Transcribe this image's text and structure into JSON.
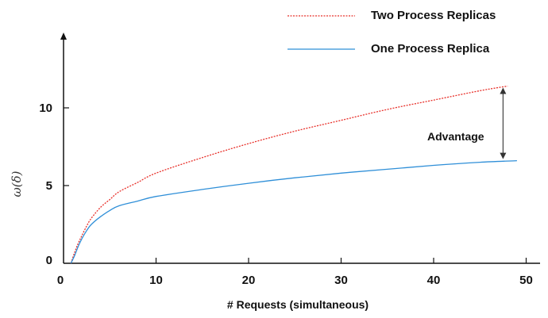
{
  "chart_data": {
    "type": "line",
    "xlabel": "# Requests (simultaneous)",
    "ylabel": "ω(δ)",
    "xlim": [
      0,
      52
    ],
    "ylim": [
      0,
      13.5
    ],
    "xticks": [
      "0",
      "10",
      "20",
      "30",
      "40",
      "50"
    ],
    "yticks": [
      "0",
      "5",
      "10"
    ],
    "grid": false,
    "legend_position": "top-right",
    "series": [
      {
        "name": "Two Process Replicas",
        "color": "#e8302a",
        "style": "dotted",
        "x": [
          0.8,
          1.2,
          1.6,
          2,
          2.5,
          3,
          4,
          5,
          6,
          8,
          10,
          15,
          20,
          25,
          30,
          35,
          40,
          45,
          48
        ],
        "y": [
          0,
          0.7,
          1.3,
          1.8,
          2.4,
          2.9,
          3.6,
          4.1,
          4.6,
          5.2,
          5.8,
          6.8,
          7.7,
          8.5,
          9.2,
          9.9,
          10.5,
          11.1,
          11.4
        ]
      },
      {
        "name": "One Process Replica",
        "color": "#2f8fd8",
        "style": "solid",
        "x": [
          0.8,
          1.2,
          1.6,
          2,
          2.5,
          3,
          4,
          5,
          6,
          8,
          10,
          15,
          20,
          25,
          30,
          35,
          40,
          45,
          49
        ],
        "y": [
          0,
          0.5,
          1.1,
          1.6,
          2.1,
          2.5,
          3.0,
          3.4,
          3.7,
          4.0,
          4.3,
          4.75,
          5.15,
          5.5,
          5.8,
          6.05,
          6.3,
          6.5,
          6.6
        ]
      }
    ],
    "annotation": {
      "text": "Advantage",
      "x": 47.5,
      "y_from": 6.6,
      "y_to": 11.4
    }
  }
}
